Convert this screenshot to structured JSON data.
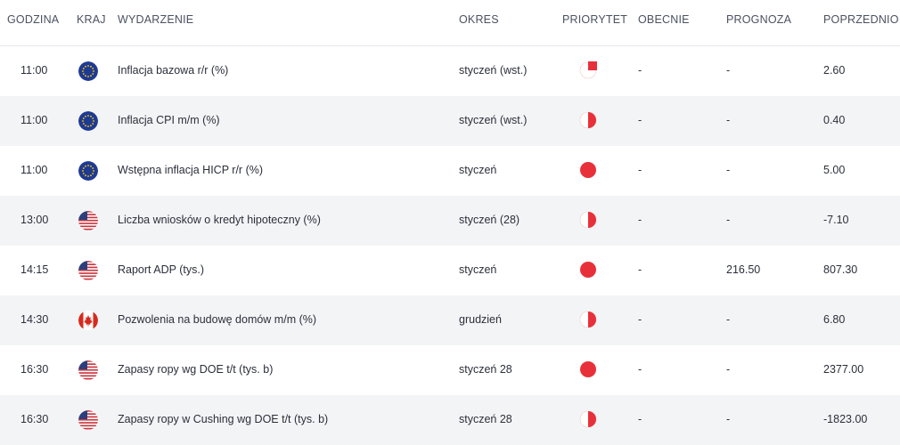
{
  "headers": {
    "time": "GODZINA",
    "country": "KRAJ",
    "event": "WYDARZENIE",
    "period": "OKRES",
    "priority": "PRIORYTET",
    "actual": "OBECNIE",
    "forecast": "PROGNOZA",
    "previous": "POPRZEDNIO"
  },
  "rows": [
    {
      "time": "11:00",
      "flag": "eu-flag-icon",
      "event": "Inflacja bazowa r/r (%)",
      "period": "styczeń (wst.)",
      "priority": "three-quarter",
      "actual": "-",
      "forecast": "-",
      "previous": "2.60"
    },
    {
      "time": "11:00",
      "flag": "eu-flag-icon",
      "event": "Inflacja CPI m/m (%)",
      "period": "styczeń (wst.)",
      "priority": "half",
      "actual": "-",
      "forecast": "-",
      "previous": "0.40"
    },
    {
      "time": "11:00",
      "flag": "eu-flag-icon",
      "event": "Wstępna inflacja HICP r/r (%)",
      "period": "styczeń",
      "priority": "full",
      "actual": "-",
      "forecast": "-",
      "previous": "5.00"
    },
    {
      "time": "13:00",
      "flag": "us-flag-icon",
      "event": "Liczba wniosków o kredyt hipoteczny (%)",
      "period": "styczeń (28)",
      "priority": "half",
      "actual": "-",
      "forecast": "-",
      "previous": "-7.10"
    },
    {
      "time": "14:15",
      "flag": "us-flag-icon",
      "event": "Raport ADP (tys.)",
      "period": "styczeń",
      "priority": "full",
      "actual": "-",
      "forecast": "216.50",
      "previous": "807.30"
    },
    {
      "time": "14:30",
      "flag": "ca-flag-icon",
      "event": "Pozwolenia na budowę domów m/m (%)",
      "period": "grudzień",
      "priority": "half",
      "actual": "-",
      "forecast": "-",
      "previous": "6.80"
    },
    {
      "time": "16:30",
      "flag": "us-flag-icon",
      "event": "Zapasy ropy wg DOE t/t (tys. b)",
      "period": "styczeń 28",
      "priority": "full",
      "actual": "-",
      "forecast": "-",
      "previous": "2377.00"
    },
    {
      "time": "16:30",
      "flag": "us-flag-icon",
      "event": "Zapasy ropy w Cushing wg DOE t/t (tys. b)",
      "period": "styczeń 28",
      "priority": "half",
      "actual": "-",
      "forecast": "-",
      "previous": "-1823.00"
    }
  ],
  "colors": {
    "priority_red": "#e8303a",
    "row_alt": "#f3f4f6",
    "eu_blue": "#1f3a93",
    "us_red": "#c8363f",
    "us_blue": "#2a3f7e",
    "ca_red": "#d52b1e"
  }
}
